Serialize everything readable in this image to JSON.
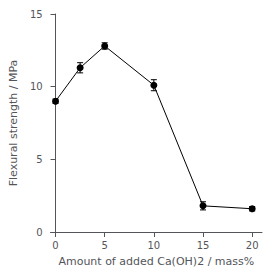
{
  "chart_data": {
    "type": "line",
    "x": [
      0,
      2.5,
      5,
      10,
      15,
      20
    ],
    "values": [
      9.0,
      11.3,
      12.8,
      10.1,
      1.8,
      1.6
    ],
    "yerr": [
      0.15,
      0.35,
      0.22,
      0.38,
      0.28,
      0.15
    ],
    "xlabel": "Amount of added Ca(OH)2 / mass%",
    "ylabel": "Flexural strength / MPa",
    "xlim": [
      -0.5,
      21
    ],
    "ylim": [
      0,
      15
    ],
    "xticks": [
      0,
      5,
      10,
      15,
      20
    ],
    "yticks": [
      0,
      5,
      10,
      15
    ],
    "color": "#000000",
    "marker": "circle",
    "grid": false
  }
}
